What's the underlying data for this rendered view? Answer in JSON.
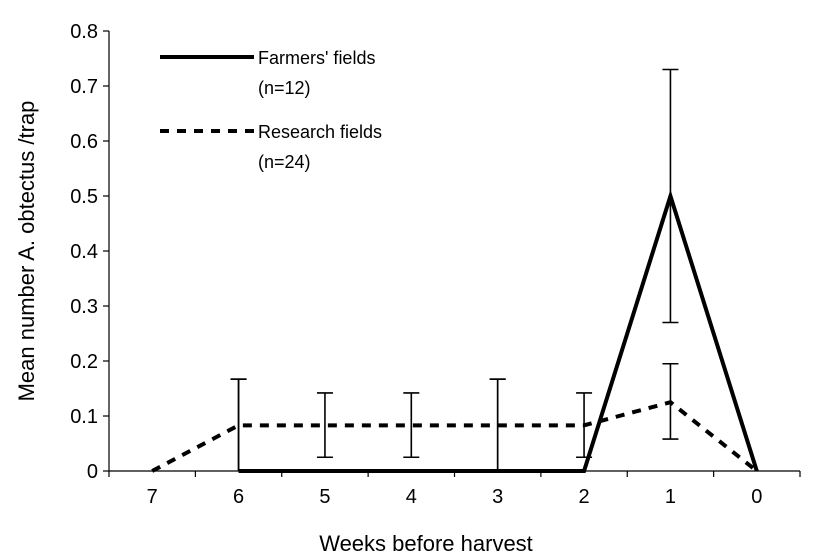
{
  "chart_data": {
    "type": "line",
    "xlabel": "Weeks before harvest",
    "ylabel": "Mean number A. obtectus /trap",
    "categories": [
      "7",
      "6",
      "5",
      "4",
      "3",
      "2",
      "1",
      "0"
    ],
    "ylim": [
      0,
      0.8
    ],
    "yticks": [
      "0",
      "0.1",
      "0.2",
      "0.3",
      "0.4",
      "0.5",
      "0.6",
      "0.7",
      "0.8"
    ],
    "grid": false,
    "legend_position": "top-left",
    "series": [
      {
        "name": "Farmers' fields",
        "name_line2": "(n=12)",
        "style": "solid",
        "values": [
          null,
          0,
          0,
          0,
          0,
          0,
          0.5,
          0
        ],
        "error_lo": [
          null,
          0,
          0,
          0,
          0,
          0,
          0.27,
          0
        ],
        "error_hi": [
          null,
          0.167,
          0,
          0,
          0.167,
          0,
          0.73,
          0
        ]
      },
      {
        "name": "Research fields",
        "name_line2": "(n=24)",
        "style": "dashed",
        "values": [
          0,
          0.083,
          0.083,
          0.083,
          0.083,
          0.083,
          0.125,
          0
        ],
        "error_lo": [
          0,
          0,
          0.025,
          0.025,
          0,
          0.025,
          0.058,
          0
        ],
        "error_hi": [
          0,
          0.167,
          0.142,
          0.142,
          0.167,
          0.142,
          0.195,
          0
        ]
      }
    ],
    "colors": {
      "line": "#000000",
      "axis": "#000000",
      "background": "#ffffff"
    }
  }
}
